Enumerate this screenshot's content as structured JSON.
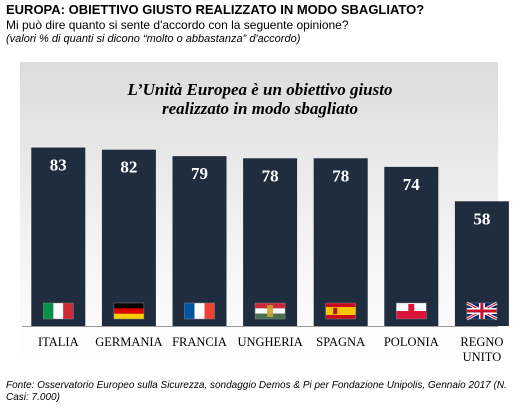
{
  "header": {
    "title": "EUROPA: OBIETTIVO GIUSTO REALIZZATO IN MODO SBAGLIATO?",
    "question": "Mi può dire quanto si sente d'accordo con la seguente opinione?",
    "note": "(valori % di quanti si dicono “molto o abbastanza”  d'accordo)"
  },
  "chart_data": {
    "type": "bar",
    "title_lines": [
      "L’Unità Europea è un obiettivo giusto",
      "realizzato in modo sbagliato"
    ],
    "categories": [
      "ITALIA",
      "GERMANIA",
      "FRANCIA",
      "UNGHERIA",
      "SPAGNA",
      "POLONIA",
      "REGNO UNITO"
    ],
    "category_lines": [
      [
        "ITALIA"
      ],
      [
        "GERMANIA"
      ],
      [
        "FRANCIA"
      ],
      [
        "UNGHERIA"
      ],
      [
        "SPAGNA"
      ],
      [
        "POLONIA"
      ],
      [
        "REGNO",
        "UNITO"
      ]
    ],
    "values": [
      83,
      82,
      79,
      78,
      78,
      74,
      58
    ],
    "flags": [
      "italy-flag",
      "germany-flag",
      "france-flag",
      "hungary-flag",
      "spain-flag",
      "poland-flag",
      "uk-flag"
    ],
    "bar_color": "#1f2d3f",
    "value_label_color": "#ffffff",
    "ylim": [
      0,
      100
    ],
    "grid": false,
    "legend": "none"
  },
  "source": "Fonte: Osservatorio Europeo sulla Sicurezza, sondaggio Demos & Pi per Fondazione Unipolis, Gennaio 2017 (N. Casi: 7.000)"
}
